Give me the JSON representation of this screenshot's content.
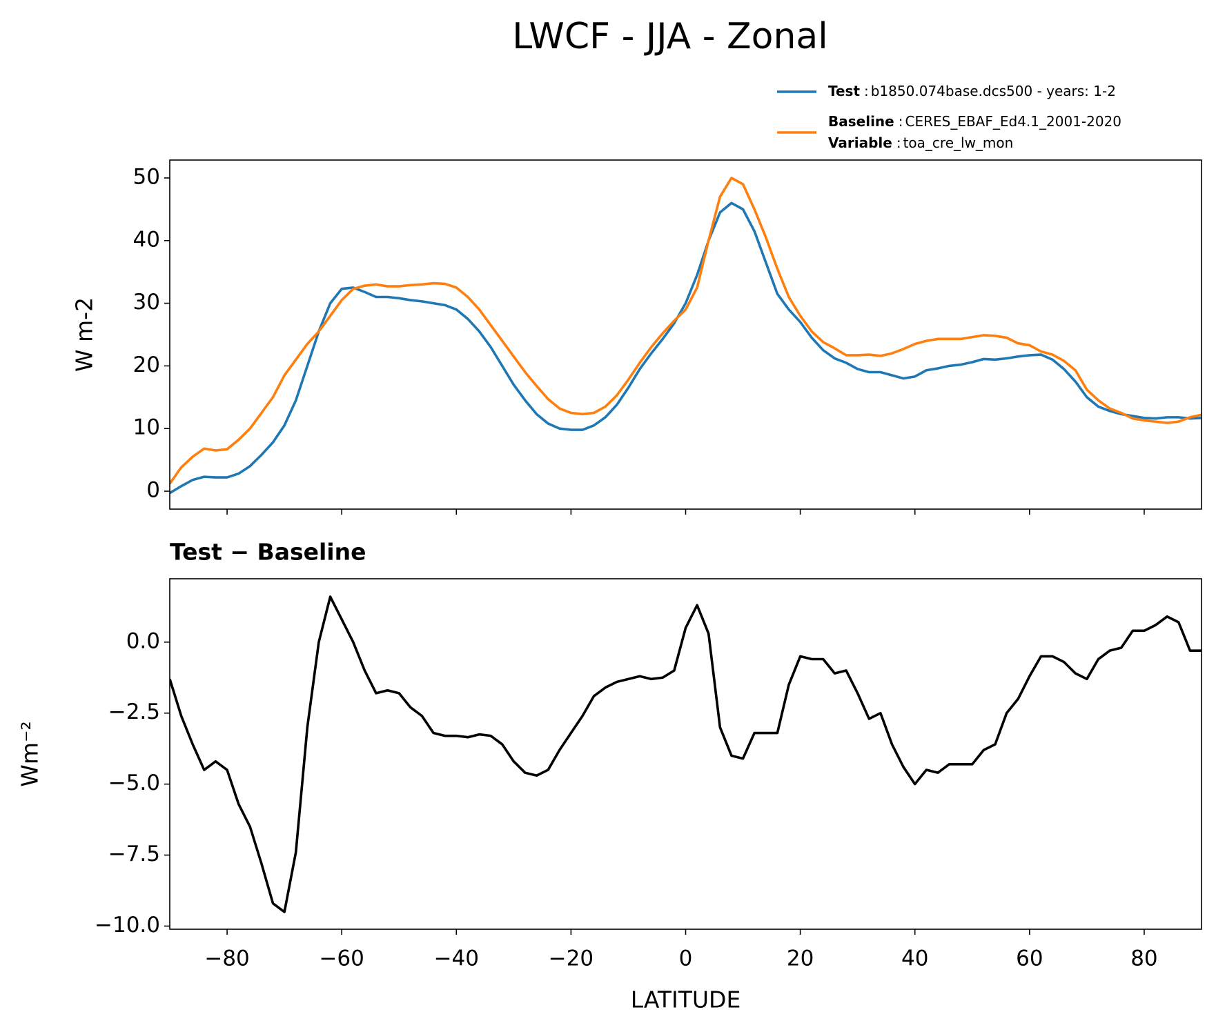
{
  "title": "LWCF - JJA - Zonal",
  "chart_data": [
    {
      "type": "line",
      "ylabel": "W m-2",
      "legend_separator": ":",
      "x": [
        -90,
        -88,
        -86,
        -84,
        -82,
        -80,
        -78,
        -76,
        -74,
        -72,
        -70,
        -68,
        -66,
        -64,
        -62,
        -60,
        -58,
        -56,
        -54,
        -52,
        -50,
        -48,
        -46,
        -44,
        -42,
        -40,
        -38,
        -36,
        -34,
        -32,
        -30,
        -28,
        -26,
        -24,
        -22,
        -20,
        -18,
        -16,
        -14,
        -12,
        -10,
        -8,
        -6,
        -4,
        -2,
        0,
        2,
        4,
        6,
        8,
        10,
        12,
        14,
        16,
        18,
        20,
        22,
        24,
        26,
        28,
        30,
        32,
        34,
        36,
        38,
        40,
        42,
        44,
        46,
        48,
        50,
        52,
        54,
        56,
        58,
        60,
        62,
        64,
        66,
        68,
        70,
        72,
        74,
        76,
        78,
        80,
        82,
        84,
        86,
        88,
        90
      ],
      "series": [
        {
          "name": "Test",
          "description": "b1850.074base.dcs500 - years: 1-2",
          "color": "#1f77b4",
          "values": [
            -0.3,
            0.8,
            1.8,
            2.3,
            2.2,
            2.2,
            2.8,
            4.0,
            5.8,
            7.8,
            10.5,
            14.5,
            20,
            25.5,
            30,
            32.3,
            32.5,
            31.8,
            31,
            31,
            30.8,
            30.5,
            30.3,
            30,
            29.7,
            29,
            27.5,
            25.5,
            23,
            20,
            17,
            14.5,
            12.3,
            10.8,
            10,
            9.8,
            9.8,
            10.5,
            11.8,
            13.8,
            16.5,
            19.5,
            22,
            24.3,
            26.8,
            30,
            34.5,
            40,
            44.5,
            46,
            45,
            41.5,
            36.5,
            31.5,
            29,
            27,
            24.5,
            22.5,
            21.2,
            20.5,
            19.5,
            19,
            19,
            18.5,
            18,
            18.3,
            19.3,
            19.6,
            20,
            20.2,
            20.6,
            21.1,
            21,
            21.2,
            21.5,
            21.7,
            21.8,
            21,
            19.5,
            17.5,
            15,
            13.5,
            12.8,
            12.3,
            12,
            11.7,
            11.6,
            11.8,
            11.8,
            11.6,
            11.7
          ]
        },
        {
          "name": "Baseline",
          "description": "CERES_EBAF_Ed4.1_2001-2020",
          "color": "#ff7f0e",
          "values": [
            1.2,
            3.8,
            5.5,
            6.8,
            6.5,
            6.7,
            8.2,
            10,
            12.5,
            15,
            18.5,
            21,
            23.5,
            25.5,
            28,
            30.5,
            32.3,
            32.8,
            33,
            32.7,
            32.7,
            32.9,
            33,
            33.2,
            33.1,
            32.5,
            31,
            29,
            26.5,
            24,
            21.5,
            19,
            16.8,
            14.7,
            13.2,
            12.5,
            12.3,
            12.5,
            13.5,
            15.3,
            17.8,
            20.5,
            23,
            25.2,
            27.2,
            29,
            32.5,
            40,
            47,
            50,
            49,
            45,
            40.5,
            35.5,
            31,
            28,
            25.5,
            23.8,
            22.8,
            21.7,
            21.7,
            21.8,
            21.6,
            22,
            22.7,
            23.5,
            24,
            24.3,
            24.3,
            24.3,
            24.6,
            24.9,
            24.8,
            24.5,
            23.6,
            23.3,
            22.3,
            21.8,
            20.8,
            19.3,
            16.2,
            14.5,
            13.2,
            12.5,
            11.6,
            11.3,
            11.1,
            10.9,
            11.1,
            11.8,
            12.2
          ]
        }
      ],
      "variable": {
        "name": "Variable",
        "description": "toa_cre_lw_mon"
      },
      "xlim": [
        -90,
        90
      ],
      "xticks": [
        -80,
        -60,
        -40,
        -20,
        0,
        20,
        40,
        60,
        80
      ],
      "ylim": [
        -2.86,
        52.86
      ],
      "yticks": [
        0,
        10,
        20,
        30,
        40,
        50
      ]
    },
    {
      "type": "line",
      "title": "Test − Baseline",
      "xlabel": "LATITUDE",
      "ylabel": "Wm⁻²",
      "x": [
        -90,
        -88,
        -86,
        -84,
        -82,
        -80,
        -78,
        -76,
        -74,
        -72,
        -70,
        -68,
        -66,
        -64,
        -62,
        -60,
        -58,
        -56,
        -54,
        -52,
        -50,
        -48,
        -46,
        -44,
        -42,
        -40,
        -38,
        -36,
        -34,
        -32,
        -30,
        -28,
        -26,
        -24,
        -22,
        -20,
        -18,
        -16,
        -14,
        -12,
        -10,
        -8,
        -6,
        -4,
        -2,
        0,
        2,
        4,
        6,
        8,
        10,
        12,
        14,
        16,
        18,
        20,
        22,
        24,
        26,
        28,
        30,
        32,
        34,
        36,
        38,
        40,
        42,
        44,
        46,
        48,
        50,
        52,
        54,
        56,
        58,
        60,
        62,
        64,
        66,
        68,
        70,
        72,
        74,
        76,
        78,
        80,
        82,
        84,
        86,
        88,
        90
      ],
      "series": [
        {
          "color": "#000000",
          "values": [
            -1.3,
            -2.6,
            -3.6,
            -4.5,
            -4.2,
            -4.5,
            -5.7,
            -6.5,
            -7.8,
            -9.2,
            -9.5,
            -7.4,
            -3.0,
            0.0,
            1.6,
            0.8,
            0.0,
            -1.0,
            -1.8,
            -1.7,
            -1.8,
            -2.3,
            -2.6,
            -3.2,
            -3.3,
            -3.3,
            -3.35,
            -3.25,
            -3.3,
            -3.6,
            -4.2,
            -4.6,
            -4.7,
            -4.5,
            -3.8,
            -3.2,
            -2.6,
            -1.9,
            -1.6,
            -1.4,
            -1.3,
            -1.2,
            -1.3,
            -1.25,
            -1.0,
            0.5,
            1.3,
            0.3,
            -3.0,
            -4.0,
            -4.1,
            -3.2,
            -3.2,
            -3.2,
            -1.5,
            -0.5,
            -0.6,
            -0.6,
            -1.1,
            -1.0,
            -1.8,
            -2.7,
            -2.5,
            -3.6,
            -4.4,
            -5.0,
            -4.5,
            -4.6,
            -4.3,
            -4.3,
            -4.3,
            -3.8,
            -3.6,
            -2.5,
            -2.0,
            -1.2,
            -0.5,
            -0.5,
            -0.7,
            -1.1,
            -1.3,
            -0.6,
            -0.3,
            -0.2,
            0.4,
            0.4,
            0.6,
            0.9,
            0.7,
            -0.3,
            -0.3
          ]
        }
      ],
      "xlim": [
        -90,
        90
      ],
      "xticks": [
        {
          "value": -80,
          "label": "−80"
        },
        {
          "value": -60,
          "label": "−60"
        },
        {
          "value": -40,
          "label": "−40"
        },
        {
          "value": -20,
          "label": "−20"
        },
        0,
        20,
        40,
        60,
        80
      ],
      "ylim": [
        -10.11,
        2.23
      ],
      "yticks": [
        {
          "value": -10,
          "label": "−10.0"
        },
        {
          "value": -7.5,
          "label": "−7.5"
        },
        {
          "value": -5,
          "label": "−5.0"
        },
        {
          "value": -2.5,
          "label": "−2.5"
        },
        {
          "value": 0,
          "label": "0.0"
        }
      ]
    }
  ]
}
